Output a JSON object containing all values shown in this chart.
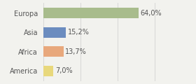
{
  "categories": [
    "Europa",
    "Asia",
    "Africa",
    "America"
  ],
  "values": [
    64.0,
    15.2,
    13.7,
    7.0
  ],
  "labels": [
    "64,0%",
    "15,2%",
    "13,7%",
    "7,0%"
  ],
  "bar_colors": [
    "#a8bc8c",
    "#6b8cbf",
    "#e8a87c",
    "#e8d87c"
  ],
  "background_color": "#f2f2ee",
  "xlim": [
    0,
    100
  ],
  "bar_height": 0.55,
  "text_color": "#555555",
  "label_fontsize": 7.0,
  "tick_fontsize": 7.0,
  "grid_lines": [
    0,
    25,
    50,
    75,
    100
  ]
}
